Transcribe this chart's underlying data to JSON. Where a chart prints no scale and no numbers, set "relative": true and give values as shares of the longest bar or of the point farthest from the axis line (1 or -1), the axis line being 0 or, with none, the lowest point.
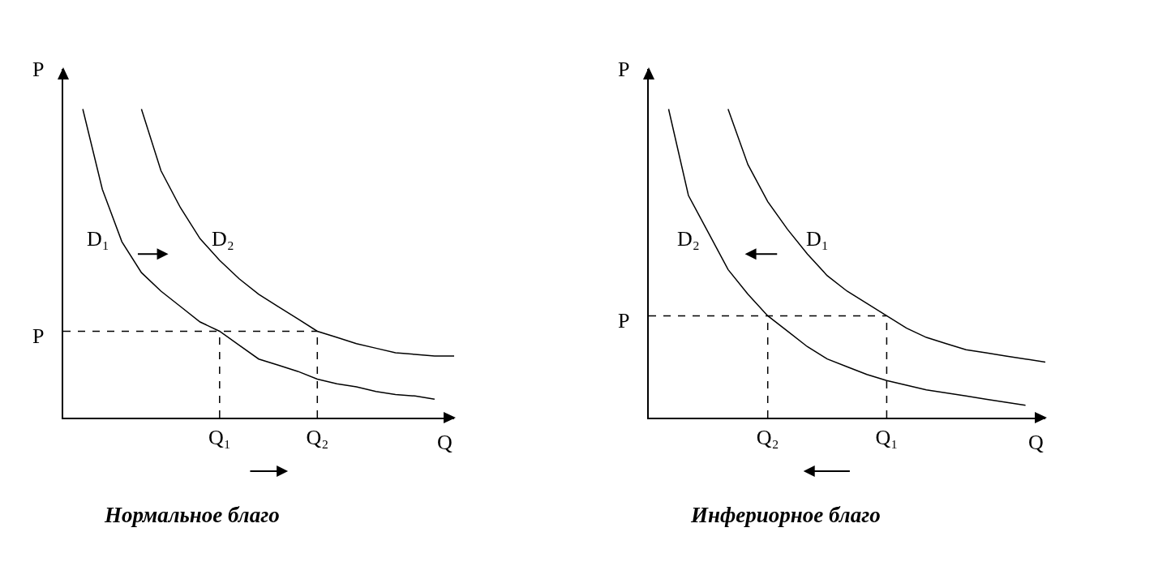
{
  "chart_data": [
    {
      "type": "line",
      "relative": true,
      "title": "Нормальное благо",
      "xlabel": "Q",
      "ylabel": "P",
      "line_style": "solid",
      "tick_labels": "x",
      "categories": [
        null,
        null,
        null,
        null,
        null,
        null,
        null,
        null,
        "Q₁",
        null,
        null,
        null,
        null,
        "Q₂",
        null,
        null,
        null,
        null,
        null,
        null,
        null
      ],
      "series": [
        {
          "name": "D₁",
          "color": "#000000",
          "values": [
            null,
            1.0,
            0.74,
            0.57,
            0.47,
            0.41,
            0.36,
            0.31,
            0.28,
            0.235,
            0.19,
            0.17,
            0.15,
            0.125,
            0.11,
            0.1,
            0.085,
            0.075,
            0.07,
            0.06,
            null
          ]
        },
        {
          "name": "D₂",
          "color": "#000000",
          "values": [
            null,
            null,
            null,
            null,
            1.0,
            0.8,
            0.68,
            0.58,
            0.51,
            0.45,
            0.4,
            0.36,
            0.32,
            0.28,
            0.26,
            0.24,
            0.225,
            0.21,
            0.205,
            0.2,
            0.2
          ]
        }
      ],
      "ref_lines": [
        {
          "axis": "y",
          "value": 0.28,
          "label": "P",
          "line_style": "dashed"
        },
        {
          "axis": "x",
          "value": "Q₁",
          "line_style": "dashed"
        },
        {
          "axis": "x",
          "value": "Q₂",
          "line_style": "dashed"
        }
      ]
    },
    {
      "type": "line",
      "relative": true,
      "title": "Инфериорное благо",
      "xlabel": "Q",
      "ylabel": "P",
      "line_style": "solid",
      "tick_labels": "x",
      "categories": [
        null,
        null,
        null,
        null,
        null,
        null,
        "Q₂",
        null,
        null,
        null,
        null,
        null,
        "Q₁",
        null,
        null,
        null,
        null,
        null,
        null,
        null,
        null
      ],
      "series": [
        {
          "name": "D₁",
          "color": "#000000",
          "values": [
            null,
            null,
            null,
            null,
            1.0,
            0.82,
            0.7,
            0.61,
            0.53,
            0.46,
            0.41,
            0.37,
            0.33,
            0.29,
            0.26,
            0.24,
            0.22,
            0.21,
            0.2,
            0.19,
            0.18
          ]
        },
        {
          "name": "D₂",
          "color": "#000000",
          "values": [
            null,
            1.0,
            0.72,
            0.6,
            0.48,
            0.4,
            0.33,
            0.28,
            0.23,
            0.19,
            0.165,
            0.14,
            0.12,
            0.105,
            0.09,
            0.08,
            0.07,
            0.06,
            0.05,
            0.04,
            null
          ]
        }
      ],
      "ref_lines": [
        {
          "axis": "y",
          "value": 0.33,
          "label": "P",
          "line_style": "dashed"
        },
        {
          "axis": "x",
          "value": "Q₂",
          "line_style": "dashed"
        },
        {
          "axis": "x",
          "value": "Q₁",
          "line_style": "dashed"
        }
      ]
    }
  ]
}
